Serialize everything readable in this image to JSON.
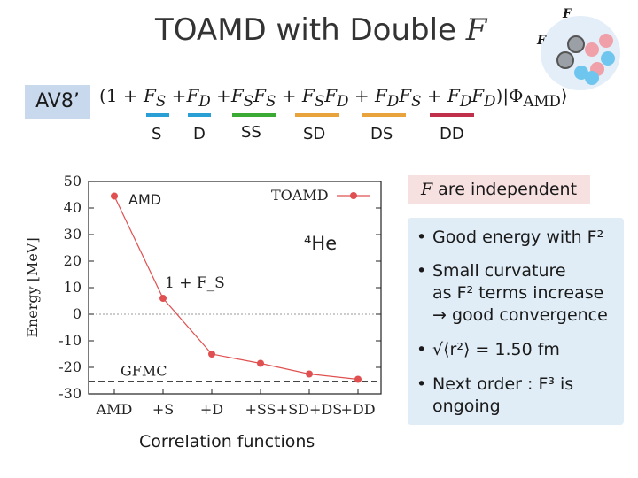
{
  "slide": {
    "title_text": "TOAMD with Double ",
    "title_math": "F",
    "badge": "AV8’",
    "formula": "(1 + F_S + F_D + F_S F_S + F_S F_D + F_D F_S + F_D F_D)|Φ_AMD⟩",
    "terms": [
      {
        "label": "S",
        "color": "#2a9fd6"
      },
      {
        "label": "D",
        "color": "#2a9fd6"
      },
      {
        "label": "SS",
        "color": "#3aaa35"
      },
      {
        "label": "SD",
        "color": "#e8a33c"
      },
      {
        "label": "DS",
        "color": "#e8a33c"
      },
      {
        "label": "DD",
        "color": "#c0304a"
      }
    ],
    "logo_labels": [
      "F",
      "F"
    ],
    "independent_text": "are independent",
    "independent_math": "F",
    "bullets": [
      {
        "lines": [
          "Good energy with F²"
        ]
      },
      {
        "lines": [
          "Small curvature",
          "as F² terms increase",
          "→ good convergence"
        ]
      },
      {
        "lines": [
          "√⟨r²⟩ = 1.50 fm"
        ]
      },
      {
        "lines": [
          "Next order : F³ is",
          "ongoing"
        ]
      }
    ],
    "xlabel_caption": "Correlation functions"
  },
  "chart_data": {
    "type": "line",
    "ylabel": "Energy [MeV]",
    "xlabel": "Correlation functions",
    "categories": [
      "AMD",
      "+S",
      "+D",
      "+SS",
      "+SD+DS",
      "+DD"
    ],
    "series": [
      {
        "name": "TOAMD",
        "values": [
          44.5,
          6,
          -15,
          -18.5,
          -22.5,
          -24.5
        ],
        "color": "#e05050"
      }
    ],
    "reference": {
      "name": "GFMC",
      "value": -25.2
    },
    "ylim": [
      -30,
      50
    ],
    "yticks": [
      50,
      40,
      30,
      20,
      10,
      0,
      -10,
      -20,
      -30
    ],
    "annotations": [
      "AMD",
      "1 + F_S",
      "⁴He"
    ],
    "zero_line": true,
    "legend_position": "top-right"
  }
}
